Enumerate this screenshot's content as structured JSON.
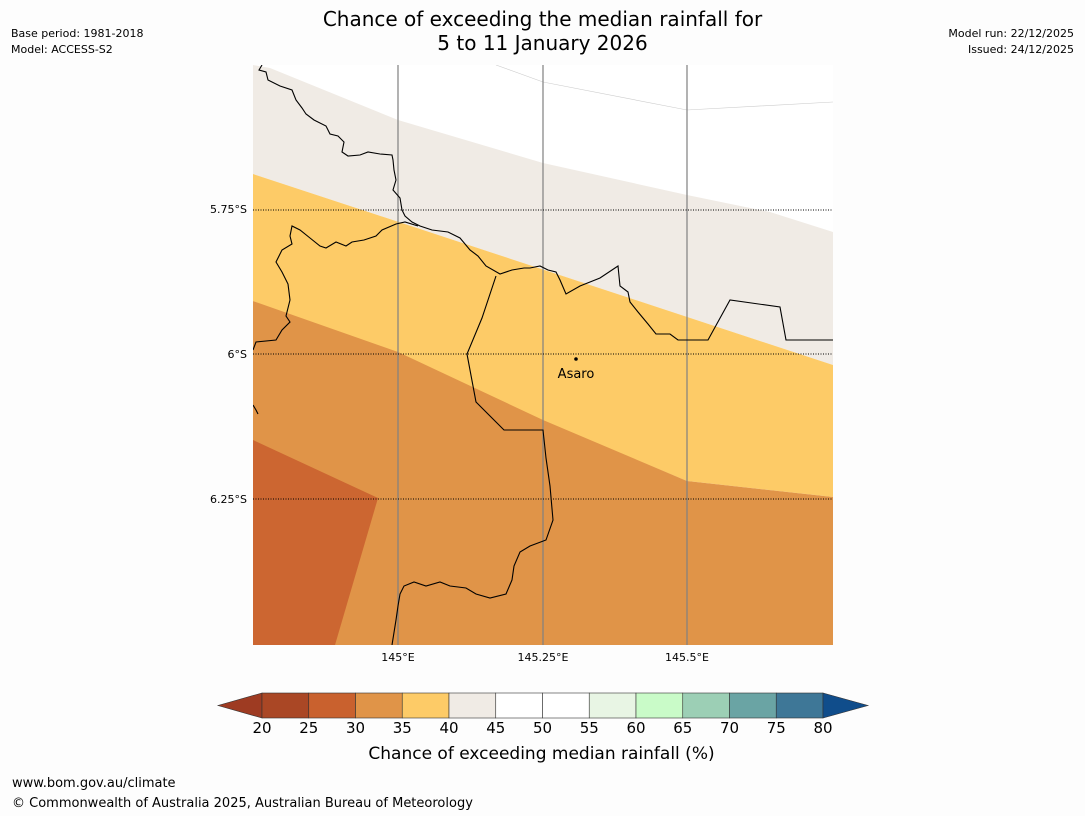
{
  "header": {
    "title_line1": "Chance of exceeding the median rainfall for",
    "title_line2": "5 to 11 January 2026",
    "base_period": "Base period: 1981-2018",
    "model": "Model: ACCESS-S2",
    "model_run": "Model run: 22/12/2025",
    "issued": "Issued: 24/12/2025"
  },
  "map": {
    "lat_labels": [
      "5.75°S",
      "6°S",
      "6.25°S"
    ],
    "lon_labels": [
      "145°E",
      "145.25°E",
      "145.5°E"
    ],
    "place": "Asaro",
    "zones": [
      {
        "range": "40-45",
        "color": "#f0ebe5"
      },
      {
        "range": "35-40",
        "color": "#fdcb67"
      },
      {
        "range": "30-35",
        "color": "#e09448"
      },
      {
        "range": "25-30",
        "color": "#cc6631"
      }
    ]
  },
  "colorbar": {
    "title": "Chance of exceeding median rainfall (%)",
    "ticks": [
      "20",
      "25",
      "30",
      "35",
      "40",
      "45",
      "50",
      "55",
      "60",
      "65",
      "70",
      "75",
      "80"
    ],
    "under_color": "#9e3b22",
    "over_color": "#104d8b",
    "colors": [
      "#aa4725",
      "#c9612e",
      "#e09448",
      "#fdcb67",
      "#f0ebe5",
      "#ffffff",
      "#ffffff",
      "#e8f5e4",
      "#c9fbc8",
      "#9ccfb5",
      "#6aa4a4",
      "#3e7797"
    ]
  },
  "footer": {
    "url": "www.bom.gov.au/climate",
    "copyright": "© Commonwealth of Australia 2025, Australian Bureau of Meteorology"
  }
}
